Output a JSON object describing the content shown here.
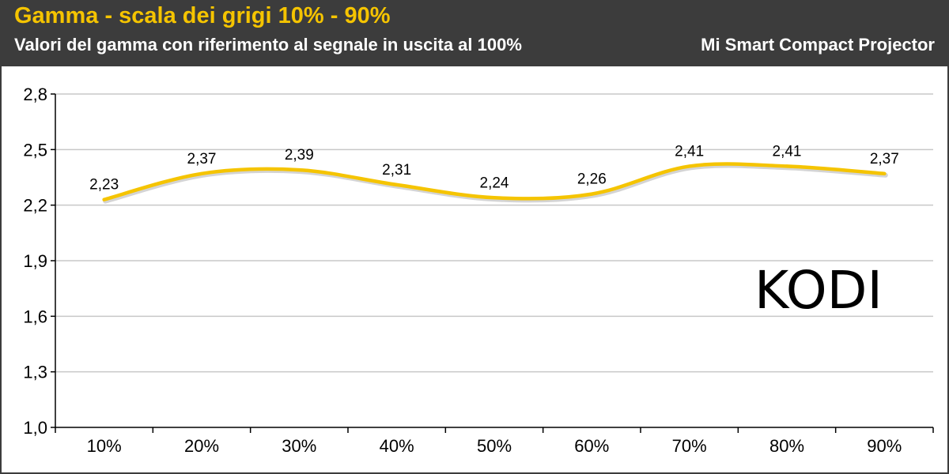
{
  "header": {
    "title": "Gamma - scala dei grigi 10% - 90%",
    "subtitle": "Valori del gamma con riferimento al segnale in uscita al 100%",
    "device": "Mi Smart Compact Projector"
  },
  "colors": {
    "header_bg": "#3c3c3c",
    "title": "#f5c400",
    "line": "#f5c400",
    "grid": "#c8c8c8"
  },
  "chart_data": {
    "type": "line",
    "categories": [
      "10%",
      "20%",
      "30%",
      "40%",
      "50%",
      "60%",
      "70%",
      "80%",
      "90%"
    ],
    "values": [
      2.23,
      2.37,
      2.39,
      2.31,
      2.24,
      2.26,
      2.41,
      2.41,
      2.37
    ],
    "data_labels": [
      "2,23",
      "2,37",
      "2,39",
      "2,31",
      "2,24",
      "2,26",
      "2,41",
      "2,41",
      "2,37"
    ],
    "yticks": [
      1.0,
      1.3,
      1.6,
      1.9,
      2.2,
      2.5,
      2.8
    ],
    "ytick_labels": [
      "1,0",
      "1,3",
      "1,6",
      "1,9",
      "2,2",
      "2,5",
      "2,8"
    ],
    "ylim": [
      1.0,
      2.8
    ],
    "grid": true,
    "legend": "none",
    "annotation": "KODI"
  }
}
